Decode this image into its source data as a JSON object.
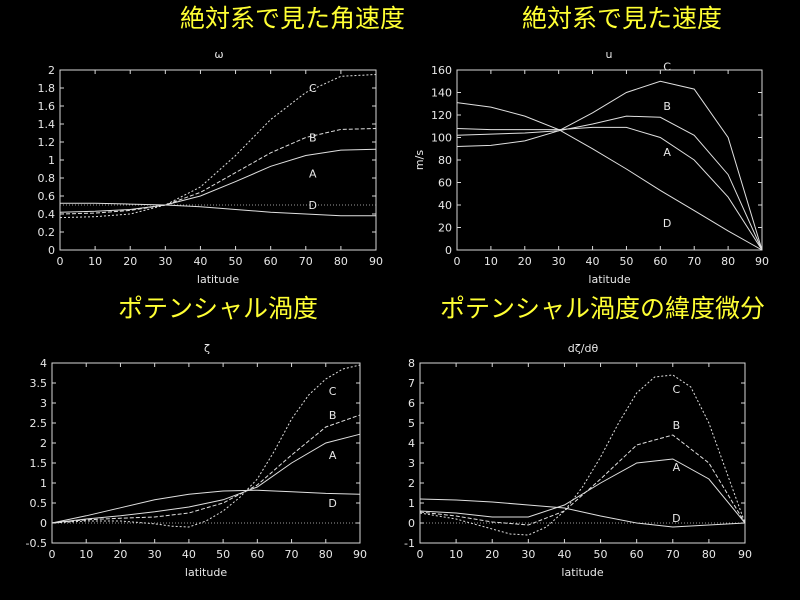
{
  "headings": [
    {
      "text": "絶対系で見た角速度"
    },
    {
      "text": "絶対系で見た速度"
    },
    {
      "text": "ポテンシャル渦度"
    },
    {
      "text": "ポテンシャル渦度の緯度微分"
    }
  ],
  "chart_data": [
    {
      "type": "line",
      "title": "ω",
      "xlabel": "latitude",
      "ylabel": "",
      "xlim": [
        0,
        90
      ],
      "ylim": [
        0,
        2
      ],
      "xticks": [
        0,
        10,
        20,
        30,
        40,
        50,
        60,
        70,
        80,
        90
      ],
      "yticks": [
        0,
        0.2,
        0.4,
        0.6,
        0.8,
        1,
        1.2,
        1.4,
        1.6,
        1.8,
        2
      ],
      "zero_line": 0.5,
      "series": [
        {
          "name": "C",
          "dash": "2 2",
          "x": [
            0,
            10,
            20,
            30,
            40,
            50,
            60,
            70,
            80,
            90
          ],
          "values": [
            0.36,
            0.37,
            0.4,
            0.5,
            0.7,
            1.05,
            1.45,
            1.75,
            1.93,
            1.95
          ],
          "label_at": [
            72,
            1.8
          ]
        },
        {
          "name": "B",
          "dash": "4 2",
          "x": [
            0,
            10,
            20,
            30,
            40,
            50,
            60,
            70,
            80,
            90
          ],
          "values": [
            0.4,
            0.41,
            0.44,
            0.5,
            0.64,
            0.86,
            1.08,
            1.25,
            1.34,
            1.35
          ],
          "label_at": [
            72,
            1.25
          ]
        },
        {
          "name": "A",
          "dash": "",
          "x": [
            0,
            10,
            20,
            30,
            40,
            50,
            60,
            70,
            80,
            90
          ],
          "values": [
            0.42,
            0.43,
            0.45,
            0.5,
            0.6,
            0.76,
            0.93,
            1.05,
            1.11,
            1.12
          ],
          "label_at": [
            72,
            0.85
          ]
        },
        {
          "name": "D",
          "dash": "",
          "x": [
            0,
            10,
            20,
            30,
            40,
            50,
            60,
            70,
            80,
            90
          ],
          "values": [
            0.52,
            0.52,
            0.51,
            0.5,
            0.48,
            0.45,
            0.42,
            0.4,
            0.38,
            0.38
          ],
          "label_at": [
            72,
            0.5
          ]
        }
      ]
    },
    {
      "type": "line",
      "title": "u",
      "xlabel": "latitude",
      "ylabel": "m/s",
      "xlim": [
        0,
        90
      ],
      "ylim": [
        0,
        160
      ],
      "xticks": [
        0,
        10,
        20,
        30,
        40,
        50,
        60,
        70,
        80,
        90
      ],
      "yticks": [
        0,
        20,
        40,
        60,
        80,
        100,
        120,
        140,
        160
      ],
      "series": [
        {
          "name": "C",
          "dash": "",
          "x": [
            0,
            10,
            20,
            30,
            40,
            50,
            60,
            70,
            80,
            90
          ],
          "values": [
            92,
            93,
            97,
            106,
            122,
            140,
            150,
            143,
            100,
            0
          ],
          "label_at": [
            62,
            163
          ]
        },
        {
          "name": "B",
          "dash": "",
          "x": [
            0,
            10,
            20,
            30,
            40,
            50,
            60,
            70,
            80,
            90
          ],
          "values": [
            102,
            103,
            104,
            106,
            112,
            119,
            118,
            102,
            67,
            0
          ],
          "label_at": [
            62,
            128
          ]
        },
        {
          "name": "A",
          "dash": "",
          "x": [
            0,
            10,
            20,
            30,
            40,
            50,
            60,
            70,
            80,
            90
          ],
          "values": [
            108,
            107,
            107,
            107,
            109,
            109,
            100,
            80,
            47,
            0
          ],
          "label_at": [
            62,
            87
          ]
        },
        {
          "name": "D",
          "dash": "",
          "x": [
            0,
            10,
            20,
            30,
            40,
            50,
            60,
            70,
            80,
            90
          ],
          "values": [
            131,
            127,
            119,
            107,
            90,
            72,
            53,
            35,
            17,
            0
          ],
          "label_at": [
            62,
            24
          ]
        }
      ]
    },
    {
      "type": "line",
      "title": "ζ",
      "xlabel": "latitude",
      "ylabel": "",
      "xlim": [
        0,
        90
      ],
      "ylim": [
        -0.5,
        4
      ],
      "xticks": [
        0,
        10,
        20,
        30,
        40,
        50,
        60,
        70,
        80,
        90
      ],
      "yticks": [
        -0.5,
        0,
        0.5,
        1,
        1.5,
        2,
        2.5,
        3,
        3.5,
        4
      ],
      "zero_line": 0,
      "series": [
        {
          "name": "C",
          "dash": "2 2",
          "x": [
            0,
            10,
            20,
            30,
            35,
            40,
            45,
            50,
            55,
            60,
            65,
            70,
            75,
            80,
            85,
            90
          ],
          "values": [
            0,
            0.05,
            0.05,
            -0.02,
            -0.08,
            -0.1,
            0.05,
            0.3,
            0.65,
            1.1,
            1.8,
            2.6,
            3.2,
            3.6,
            3.85,
            3.95
          ],
          "label_at": [
            82,
            3.3
          ]
        },
        {
          "name": "B",
          "dash": "4 2",
          "x": [
            0,
            10,
            20,
            30,
            40,
            50,
            60,
            70,
            80,
            90
          ],
          "values": [
            0,
            0.08,
            0.12,
            0.15,
            0.25,
            0.5,
            0.95,
            1.7,
            2.4,
            2.7
          ],
          "label_at": [
            82,
            2.7
          ]
        },
        {
          "name": "A",
          "dash": "",
          "x": [
            0,
            10,
            20,
            30,
            40,
            50,
            60,
            70,
            80,
            90
          ],
          "values": [
            0,
            0.1,
            0.18,
            0.28,
            0.4,
            0.58,
            0.9,
            1.5,
            2.0,
            2.22
          ],
          "label_at": [
            82,
            1.7
          ]
        },
        {
          "name": "D",
          "dash": "",
          "x": [
            0,
            10,
            20,
            30,
            40,
            50,
            60,
            70,
            80,
            90
          ],
          "values": [
            0,
            0.18,
            0.38,
            0.58,
            0.72,
            0.8,
            0.82,
            0.78,
            0.74,
            0.72
          ],
          "label_at": [
            82,
            0.5
          ]
        }
      ]
    },
    {
      "type": "line",
      "title": "dζ/dθ",
      "xlabel": "latitude",
      "ylabel": "",
      "xlim": [
        0,
        90
      ],
      "ylim": [
        -1,
        8
      ],
      "xticks": [
        0,
        10,
        20,
        30,
        40,
        50,
        60,
        70,
        80,
        90
      ],
      "yticks": [
        -1,
        0,
        1,
        2,
        3,
        4,
        5,
        6,
        7,
        8
      ],
      "zero_line": 0,
      "series": [
        {
          "name": "C",
          "dash": "2 2",
          "x": [
            0,
            10,
            20,
            25,
            30,
            35,
            40,
            45,
            50,
            55,
            60,
            65,
            70,
            75,
            80,
            85,
            90
          ],
          "values": [
            0.5,
            0.2,
            -0.3,
            -0.55,
            -0.6,
            -0.2,
            0.6,
            1.8,
            3.3,
            5.0,
            6.5,
            7.3,
            7.4,
            6.8,
            5.0,
            2.5,
            0
          ],
          "label_at": [
            71,
            6.7
          ]
        },
        {
          "name": "B",
          "dash": "4 2",
          "x": [
            0,
            10,
            20,
            30,
            40,
            50,
            60,
            70,
            80,
            90
          ],
          "values": [
            0.55,
            0.35,
            0.05,
            -0.1,
            0.6,
            2.2,
            3.9,
            4.4,
            3.0,
            0
          ],
          "label_at": [
            71,
            4.9
          ]
        },
        {
          "name": "A",
          "dash": "",
          "x": [
            0,
            10,
            20,
            30,
            40,
            50,
            60,
            70,
            80,
            90
          ],
          "values": [
            0.6,
            0.5,
            0.3,
            0.3,
            0.9,
            2.0,
            3.0,
            3.2,
            2.2,
            0
          ],
          "label_at": [
            71,
            2.8
          ]
        },
        {
          "name": "D",
          "dash": "",
          "x": [
            0,
            10,
            20,
            30,
            40,
            50,
            60,
            70,
            80,
            90
          ],
          "values": [
            1.2,
            1.15,
            1.05,
            0.9,
            0.75,
            0.35,
            0.0,
            -0.2,
            -0.1,
            0
          ],
          "label_at": [
            71,
            0.25
          ]
        }
      ]
    }
  ]
}
